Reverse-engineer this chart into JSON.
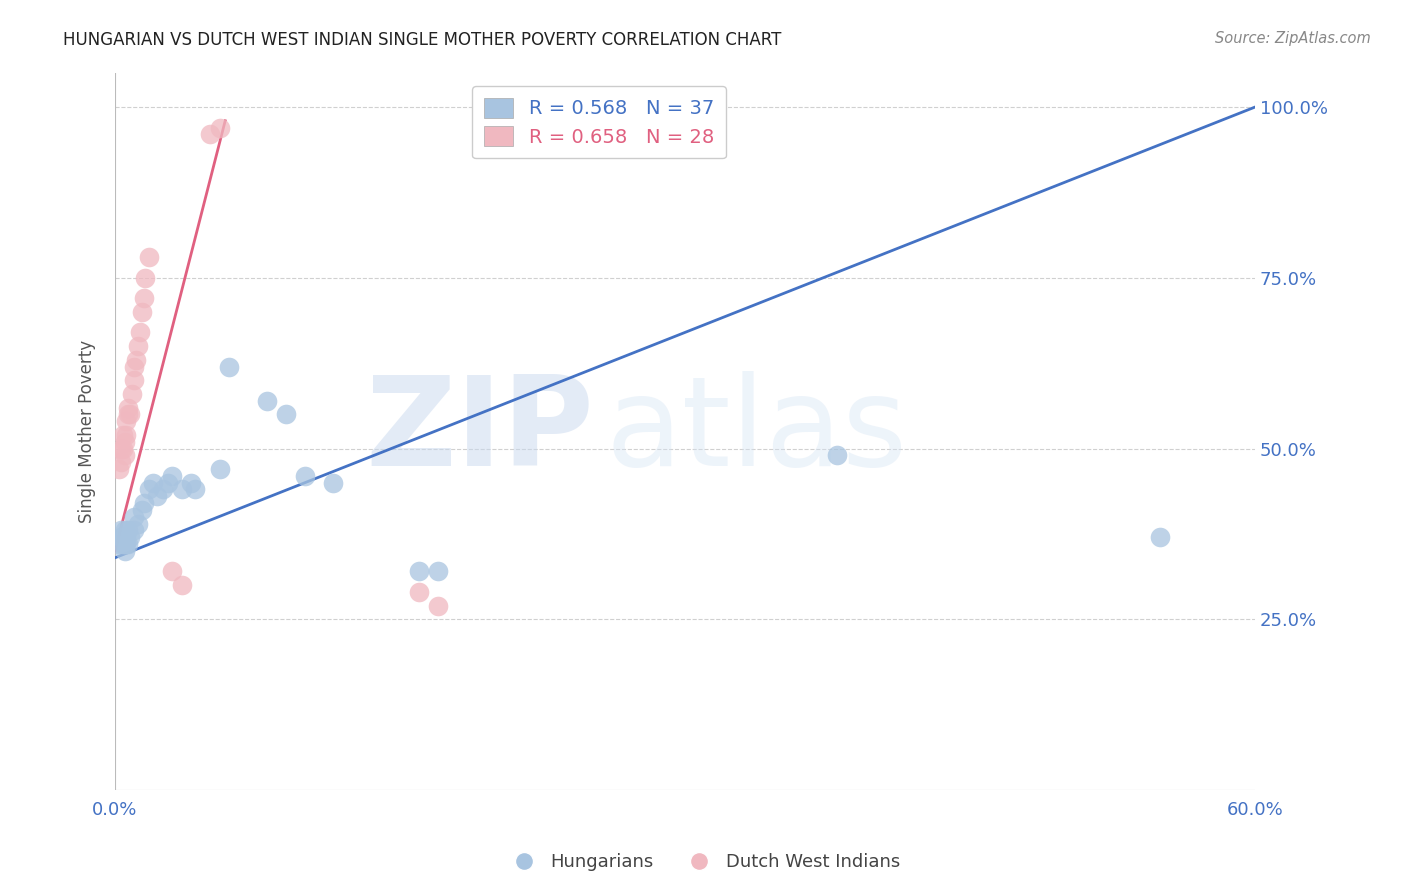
{
  "title": "HUNGARIAN VS DUTCH WEST INDIAN SINGLE MOTHER POVERTY CORRELATION CHART",
  "source": "Source: ZipAtlas.com",
  "ylabel_label": "Single Mother Poverty",
  "xlim": [
    0.0,
    0.6
  ],
  "ylim": [
    0.0,
    1.05
  ],
  "blue_R": 0.568,
  "blue_N": 37,
  "pink_R": 0.658,
  "pink_N": 28,
  "legend_label_bottom_blue": "Hungarians",
  "legend_label_bottom_pink": "Dutch West Indians",
  "blue_color": "#a8c4e0",
  "pink_color": "#f0b8c0",
  "blue_line_color": "#4472c4",
  "pink_line_color": "#e06080",
  "blue_scatter": [
    [
      0.002,
      0.36
    ],
    [
      0.003,
      0.37
    ],
    [
      0.003,
      0.38
    ],
    [
      0.004,
      0.36
    ],
    [
      0.004,
      0.37
    ],
    [
      0.005,
      0.35
    ],
    [
      0.005,
      0.36
    ],
    [
      0.005,
      0.38
    ],
    [
      0.006,
      0.36
    ],
    [
      0.006,
      0.37
    ],
    [
      0.007,
      0.38
    ],
    [
      0.007,
      0.36
    ],
    [
      0.008,
      0.37
    ],
    [
      0.01,
      0.38
    ],
    [
      0.01,
      0.4
    ],
    [
      0.012,
      0.39
    ],
    [
      0.014,
      0.41
    ],
    [
      0.015,
      0.42
    ],
    [
      0.018,
      0.44
    ],
    [
      0.02,
      0.45
    ],
    [
      0.022,
      0.43
    ],
    [
      0.025,
      0.44
    ],
    [
      0.028,
      0.45
    ],
    [
      0.03,
      0.46
    ],
    [
      0.035,
      0.44
    ],
    [
      0.04,
      0.45
    ],
    [
      0.042,
      0.44
    ],
    [
      0.055,
      0.47
    ],
    [
      0.06,
      0.62
    ],
    [
      0.08,
      0.57
    ],
    [
      0.09,
      0.55
    ],
    [
      0.1,
      0.46
    ],
    [
      0.115,
      0.45
    ],
    [
      0.16,
      0.32
    ],
    [
      0.17,
      0.32
    ],
    [
      0.38,
      0.49
    ],
    [
      0.55,
      0.37
    ]
  ],
  "pink_scatter": [
    [
      0.002,
      0.47
    ],
    [
      0.003,
      0.48
    ],
    [
      0.003,
      0.5
    ],
    [
      0.004,
      0.5
    ],
    [
      0.004,
      0.52
    ],
    [
      0.005,
      0.49
    ],
    [
      0.005,
      0.51
    ],
    [
      0.006,
      0.52
    ],
    [
      0.006,
      0.54
    ],
    [
      0.007,
      0.55
    ],
    [
      0.007,
      0.56
    ],
    [
      0.008,
      0.55
    ],
    [
      0.009,
      0.58
    ],
    [
      0.01,
      0.6
    ],
    [
      0.01,
      0.62
    ],
    [
      0.011,
      0.63
    ],
    [
      0.012,
      0.65
    ],
    [
      0.013,
      0.67
    ],
    [
      0.014,
      0.7
    ],
    [
      0.015,
      0.72
    ],
    [
      0.016,
      0.75
    ],
    [
      0.018,
      0.78
    ],
    [
      0.03,
      0.32
    ],
    [
      0.035,
      0.3
    ],
    [
      0.05,
      0.96
    ],
    [
      0.055,
      0.97
    ],
    [
      0.16,
      0.29
    ],
    [
      0.17,
      0.27
    ]
  ],
  "watermark_zip": "ZIP",
  "watermark_atlas": "atlas",
  "background_color": "#ffffff",
  "grid_color": "#d0d0d0"
}
